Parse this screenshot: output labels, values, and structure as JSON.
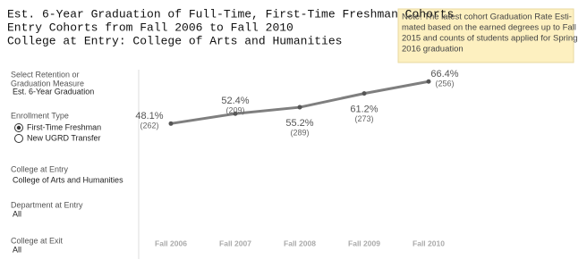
{
  "title_lines": [
    "Est. 6-Year Graduation of Full-Time, First-Time Freshman Cohorts",
    "Entry Cohorts from Fall 2006 to Fall 2010",
    "College at Entry: College of Arts and Humanities"
  ],
  "note_lines": [
    "Note: The latest cohort Graduation Rate Esti-",
    "mated based on the earned degrees up to Fall",
    "2015 and counts of students applied for Spring",
    "2016 graduation"
  ],
  "filters": {
    "measure": {
      "label_lines": [
        "Select Retention or",
        "Graduation Measure"
      ],
      "value": "Est. 6-Year Graduation"
    },
    "enrollment": {
      "label": "Enrollment Type",
      "options": [
        "First-Time Freshman",
        "New UGRD Transfer"
      ]
    },
    "college_entry": {
      "label": "College at Entry",
      "value": "College of Arts and Humanities"
    },
    "department": {
      "label": "Department at Entry",
      "value": "All"
    },
    "college_exit": {
      "label": "College at Exit",
      "value": "All"
    }
  },
  "chart_data": {
    "type": "line",
    "categories": [
      "Fall 2006",
      "Fall 2007",
      "Fall 2008",
      "Fall 2009",
      "Fall 2010"
    ],
    "values": [
      48.1,
      52.4,
      55.2,
      61.2,
      66.4
    ],
    "value_labels": [
      "48.1%",
      "52.4%",
      "55.2%",
      "61.2%",
      "66.4%"
    ],
    "count_labels": [
      "(262)",
      "(209)",
      "(289)",
      "(273)",
      "(256)"
    ],
    "color": "#7f7f7f",
    "ylim": [
      0,
      70
    ]
  }
}
